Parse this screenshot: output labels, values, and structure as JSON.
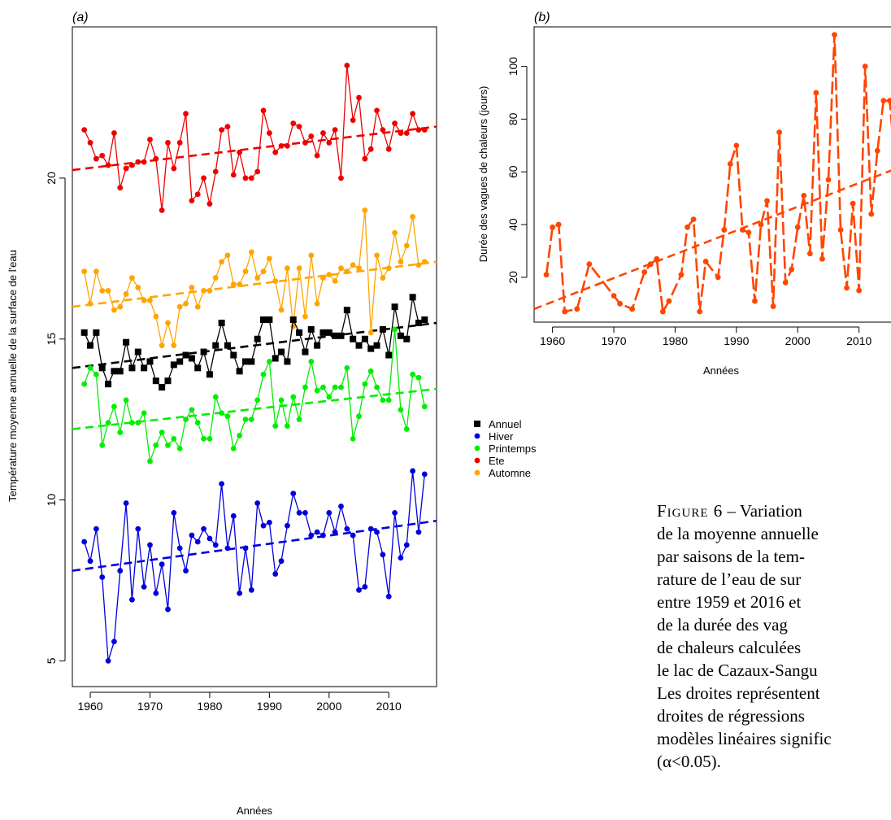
{
  "colors": {
    "annuel": "#000000",
    "hiver": "#0000dd",
    "printemps": "#00ee00",
    "ete": "#ee0000",
    "automne": "#ffa500",
    "vagues": "#ff4500"
  },
  "chart_data": [
    {
      "panel": "(a)",
      "type": "line",
      "xlabel": "Années",
      "ylabel": "Température moyenne annuelle de la surface de l'eau",
      "xlim": [
        1957,
        2018
      ],
      "ylim": [
        4.2,
        24.7
      ],
      "x_ticks": [
        1960,
        1970,
        1980,
        1990,
        2000,
        2010
      ],
      "y_ticks": [
        5,
        10,
        15,
        20
      ],
      "legend_position": "right-middle",
      "legend": [
        "Annuel",
        "Hiver",
        "Printemps",
        "Ete",
        "Automne"
      ],
      "x": [
        1959,
        1960,
        1961,
        1962,
        1963,
        1964,
        1965,
        1966,
        1967,
        1968,
        1969,
        1970,
        1971,
        1972,
        1973,
        1974,
        1975,
        1976,
        1977,
        1978,
        1979,
        1980,
        1981,
        1982,
        1983,
        1984,
        1985,
        1986,
        1987,
        1988,
        1989,
        1990,
        1991,
        1992,
        1993,
        1994,
        1995,
        1996,
        1997,
        1998,
        1999,
        2000,
        2001,
        2002,
        2003,
        2004,
        2005,
        2006,
        2007,
        2008,
        2009,
        2010,
        2011,
        2012,
        2013,
        2014,
        2015,
        2016
      ],
      "series": [
        {
          "name": "Ete",
          "color_key": "ete",
          "marker": "circle",
          "values": [
            21.5,
            21.1,
            20.6,
            20.7,
            20.4,
            21.4,
            19.7,
            20.3,
            20.4,
            20.5,
            20.5,
            21.2,
            20.6,
            19.0,
            21.1,
            20.3,
            21.1,
            22.0,
            19.3,
            19.5,
            20.0,
            19.2,
            20.2,
            21.5,
            21.6,
            20.1,
            20.8,
            20.0,
            20.0,
            20.2,
            22.1,
            21.4,
            20.8,
            21.0,
            21.0,
            21.7,
            21.6,
            21.1,
            21.3,
            20.7,
            21.4,
            21.1,
            21.5,
            20.0,
            23.5,
            21.8,
            22.5,
            20.6,
            20.9,
            22.1,
            21.5,
            20.9,
            21.7,
            21.4,
            21.4,
            22.0,
            21.5,
            21.5
          ],
          "trend": [
            20.25,
            21.6
          ]
        },
        {
          "name": "Automne",
          "color_key": "automne",
          "marker": "circle",
          "values": [
            17.1,
            16.1,
            17.1,
            16.5,
            16.5,
            15.9,
            16.0,
            16.4,
            16.9,
            16.6,
            16.2,
            16.2,
            15.7,
            14.8,
            15.5,
            14.8,
            16.0,
            16.1,
            16.6,
            16.0,
            16.5,
            16.5,
            16.9,
            17.4,
            17.6,
            16.7,
            16.7,
            17.1,
            17.7,
            16.9,
            17.1,
            17.5,
            16.8,
            15.9,
            17.2,
            15.4,
            17.2,
            15.7,
            17.6,
            16.1,
            16.9,
            17.0,
            16.8,
            17.2,
            17.1,
            17.3,
            17.2,
            19.0,
            15.2,
            17.6,
            16.9,
            17.2,
            18.3,
            17.4,
            17.9,
            18.8,
            17.3,
            17.4
          ],
          "trend": [
            16.0,
            17.4
          ]
        },
        {
          "name": "Annuel",
          "color_key": "annuel",
          "marker": "square",
          "values": [
            15.2,
            14.8,
            15.2,
            14.1,
            13.6,
            14.0,
            14.0,
            14.9,
            14.1,
            14.6,
            14.1,
            14.3,
            13.7,
            13.5,
            13.7,
            14.2,
            14.3,
            14.5,
            14.4,
            14.1,
            14.6,
            13.9,
            14.8,
            15.5,
            14.8,
            14.5,
            14.0,
            14.3,
            14.3,
            15.0,
            15.6,
            15.6,
            14.4,
            14.6,
            14.3,
            15.6,
            15.2,
            14.6,
            15.3,
            14.8,
            15.2,
            15.2,
            15.1,
            15.1,
            15.9,
            15.0,
            14.8,
            15.0,
            14.7,
            14.8,
            15.3,
            14.5,
            16.0,
            15.1,
            15.0,
            16.3,
            15.5,
            15.6
          ],
          "trend": [
            14.1,
            15.5
          ]
        },
        {
          "name": "Printemps",
          "color_key": "printemps",
          "marker": "circle",
          "values": [
            13.6,
            14.1,
            13.9,
            11.7,
            12.4,
            12.9,
            12.1,
            13.1,
            12.4,
            12.4,
            12.7,
            11.2,
            11.7,
            12.1,
            11.7,
            11.9,
            11.6,
            12.5,
            12.8,
            12.4,
            11.9,
            11.9,
            13.2,
            12.7,
            12.6,
            11.6,
            12.0,
            12.5,
            12.5,
            13.1,
            13.9,
            14.3,
            12.3,
            13.1,
            12.3,
            13.2,
            12.5,
            13.5,
            14.3,
            13.4,
            13.5,
            13.2,
            13.5,
            13.5,
            14.1,
            11.9,
            12.6,
            13.6,
            14.0,
            13.5,
            13.1,
            13.1,
            15.3,
            12.8,
            12.2,
            13.9,
            13.8,
            12.9
          ],
          "trend": [
            12.2,
            13.45
          ]
        },
        {
          "name": "Hiver",
          "color_key": "hiver",
          "marker": "circle",
          "values": [
            8.7,
            8.1,
            9.1,
            7.6,
            5.0,
            5.6,
            7.8,
            9.9,
            6.9,
            9.1,
            7.3,
            8.6,
            7.1,
            8.0,
            6.6,
            9.6,
            8.5,
            7.8,
            8.9,
            8.7,
            9.1,
            8.8,
            8.6,
            10.5,
            8.5,
            9.5,
            7.1,
            8.5,
            7.2,
            9.9,
            9.2,
            9.3,
            7.7,
            8.1,
            9.2,
            10.2,
            9.6,
            9.6,
            8.9,
            9.0,
            8.9,
            9.6,
            9.0,
            9.8,
            9.1,
            8.9,
            7.2,
            7.3,
            9.1,
            9.0,
            8.3,
            7.0,
            9.6,
            8.2,
            8.6,
            10.9,
            9.0,
            10.8
          ],
          "trend": [
            7.8,
            9.35
          ]
        }
      ]
    },
    {
      "panel": "(b)",
      "type": "line",
      "xlabel": "Années",
      "ylabel": "Durée des vagues de chaleurs (jours)",
      "xlim": [
        1957,
        2018
      ],
      "ylim": [
        3,
        115
      ],
      "x_ticks": [
        1960,
        1970,
        1980,
        1990,
        2000,
        2010
      ],
      "y_ticks": [
        20,
        40,
        60,
        80,
        100
      ],
      "series": [
        {
          "name": "",
          "color_key": "vagues",
          "marker": "circle",
          "x": [
            1959,
            1960,
            1961,
            1962,
            1964,
            1966,
            1970,
            1971,
            1973,
            1975,
            1976,
            1977,
            1978,
            1979,
            1981,
            1982,
            1983,
            1984,
            1985,
            1987,
            1988,
            1989,
            1990,
            1991,
            1992,
            1993,
            1994,
            1995,
            1996,
            1997,
            1998,
            1999,
            2000,
            2001,
            2002,
            2003,
            2004,
            2005,
            2006,
            2007,
            2008,
            2009,
            2010,
            2011,
            2012,
            2013,
            2014,
            2015,
            2016
          ],
          "values": [
            21,
            39,
            40,
            7,
            8,
            25,
            13,
            10,
            8,
            22,
            25,
            27,
            7,
            11,
            21,
            39,
            42,
            7,
            26,
            20,
            38,
            63,
            70,
            38,
            37,
            11,
            40,
            49,
            9,
            75,
            18,
            23,
            39,
            51,
            29,
            90,
            27,
            57,
            112,
            38,
            16,
            48,
            15,
            100,
            44,
            68,
            87,
            87,
            60
          ],
          "trend": [
            8,
            63
          ]
        }
      ]
    }
  ],
  "legend_labels": [
    "Annuel",
    "Hiver",
    "Printemps",
    "Ete",
    "Automne"
  ],
  "caption": {
    "fig_label": "Figure 6",
    "lines": [
      " – Variation",
      "de la moyenne annuelle",
      "par saisons de la tem-",
      "rature de l’eau de sur",
      "entre 1959 et 2016 et",
      "de la durée des vag",
      "de chaleurs calculées",
      "le lac de Cazaux-Sangu",
      "Les droites représentent",
      "droites de régressions",
      "modèles linéaires signific",
      "(α<0.05)."
    ]
  }
}
